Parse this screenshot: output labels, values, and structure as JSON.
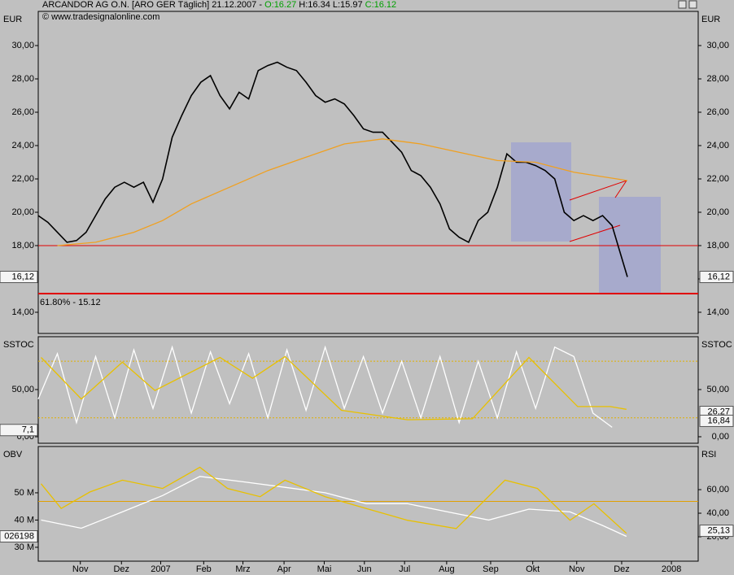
{
  "chart_data": [
    {
      "type": "line",
      "title": "ARCANDOR AG O.N. [ARO GER  Täglich] 21.12.2007 -",
      "ohlc": [
        "O:16.27",
        "H:16.34",
        "L:15.97",
        "C:16.12"
      ],
      "credit": "© www.tradesignalonline.com",
      "left_label": "EUR",
      "right_label": "EUR",
      "xlim": [
        0,
        69
      ],
      "ylim": [
        12.73,
        32.05
      ],
      "yticks": [
        {
          "value": 14,
          "label": "14,00"
        },
        {
          "value": 16,
          "label": "16,00"
        },
        {
          "value": 18,
          "label": "18,00"
        },
        {
          "value": 20,
          "label": "20,00"
        },
        {
          "value": 22,
          "label": "22,00"
        },
        {
          "value": 24,
          "label": "24,00"
        },
        {
          "value": 26,
          "label": "26,00"
        },
        {
          "value": 28,
          "label": "28,00"
        },
        {
          "value": 30,
          "label": "30,00"
        }
      ],
      "hlines": [
        {
          "value": 18,
          "color": "#e00000"
        },
        {
          "value": 15.12,
          "color": "#e00000"
        }
      ],
      "annotation": {
        "text": "61.80% - 15.12",
        "value": 15.12
      },
      "series": [
        {
          "color": "#000000",
          "x": [
            0,
            1,
            2,
            3,
            4,
            5,
            6,
            7,
            8,
            9,
            10,
            11,
            12,
            13,
            14,
            15,
            16,
            17,
            18,
            19,
            20,
            21,
            22,
            23,
            24,
            25,
            26,
            27,
            28,
            29,
            30,
            31,
            32,
            33,
            34,
            35,
            36,
            37,
            38,
            39,
            40,
            41,
            42,
            43,
            44,
            45,
            46,
            47,
            48,
            49,
            50,
            51,
            52,
            53,
            54,
            55,
            56,
            57,
            58,
            59,
            60,
            61.6
          ],
          "values": [
            19.8,
            19.4,
            18.8,
            18.2,
            18.3,
            18.8,
            19.8,
            20.8,
            21.5,
            21.8,
            21.5,
            21.8,
            20.6,
            22.0,
            24.5,
            25.8,
            27.0,
            27.8,
            28.2,
            27.0,
            26.2,
            27.2,
            26.8,
            28.5,
            28.8,
            29.0,
            28.7,
            28.5,
            27.8,
            27.0,
            26.6,
            26.8,
            26.5,
            25.8,
            25.0,
            24.8,
            24.8,
            24.2,
            23.6,
            22.5,
            22.2,
            21.5,
            20.5,
            19.0,
            18.5,
            18.2,
            19.5,
            20.0,
            21.5,
            23.5,
            23.0,
            23.0,
            22.8,
            22.5,
            22.0,
            20.0,
            19.5,
            19.8,
            19.5,
            19.8,
            19.2,
            16.12
          ]
        },
        {
          "color": "#f0a020",
          "x": [
            2,
            6,
            10,
            13,
            16,
            20,
            24,
            28,
            32,
            36,
            40,
            44,
            48,
            52,
            56,
            61.6
          ],
          "values": [
            18.0,
            18.2,
            18.8,
            19.5,
            20.5,
            21.5,
            22.5,
            23.3,
            24.1,
            24.4,
            24.1,
            23.6,
            23.1,
            23.0,
            22.4,
            21.9
          ]
        }
      ],
      "tags": [
        {
          "label": "16,12",
          "value": 16.12,
          "side": "left"
        },
        {
          "label": "16,12",
          "value": 16.12,
          "side": "right"
        }
      ]
    },
    {
      "type": "line",
      "left_label": "SSTOC",
      "right_label": "SSTOC",
      "xlim": [
        0,
        69
      ],
      "ylim": [
        -6.9,
        106
      ],
      "yticks": [
        {
          "value": 0,
          "label": "0,00"
        },
        {
          "value": 50,
          "label": "50,00"
        }
      ],
      "hlines": [
        {
          "value": 80,
          "color": "#e0b000",
          "dotted": true
        },
        {
          "value": 20,
          "color": "#e0b000",
          "dotted": true
        }
      ],
      "series": [
        {
          "color": "#ffffff",
          "x": [
            0,
            2,
            4,
            6,
            8,
            10,
            12,
            14,
            16,
            18,
            20,
            22,
            24,
            26,
            28,
            30,
            32,
            34,
            36,
            38,
            40,
            42,
            44,
            46,
            48,
            50,
            52,
            54,
            56,
            58,
            60
          ],
          "values": [
            40,
            88,
            15,
            85,
            20,
            92,
            30,
            95,
            25,
            90,
            35,
            88,
            20,
            92,
            28,
            95,
            30,
            85,
            25,
            80,
            20,
            85,
            15,
            80,
            20,
            90,
            30,
            95,
            85,
            25,
            10
          ]
        },
        {
          "color": "#e8c000",
          "x": [
            0.3,
            4.5,
            8.8,
            12.2,
            19,
            22.4,
            25.8,
            31.7,
            38.6,
            45.4,
            51.3,
            56.4,
            59.8,
            61.5
          ],
          "values": [
            84,
            40,
            79,
            49,
            84,
            62,
            85,
            28,
            18,
            19,
            84,
            32,
            32,
            29
          ]
        }
      ],
      "tags": [
        {
          "label": "7,1",
          "value": 7.1,
          "side": "left"
        },
        {
          "label": "26,27",
          "value": 26.27,
          "side": "right"
        },
        {
          "label": "16,84",
          "value": 16.84,
          "side": "right"
        }
      ]
    },
    {
      "type": "line",
      "left_label": "OBV",
      "right_label": "RSI",
      "xlim": [
        0,
        69
      ],
      "ylim": [
        24.9,
        67
      ],
      "yticks": [
        {
          "value": 30,
          "label": "30 M"
        },
        {
          "value": 40,
          "label": "40 M"
        },
        {
          "value": 50,
          "label": "50 M"
        }
      ],
      "y2lim": [
        -0.7,
        96.6
      ],
      "y2ticks": [
        {
          "value": 20,
          "label": "20,00"
        },
        {
          "value": 40,
          "label": "40,00"
        },
        {
          "value": 60,
          "label": "60,00"
        }
      ],
      "hlines": [
        {
          "value": 50,
          "color": "#e0a000",
          "axis": "y2"
        }
      ],
      "xticks": [
        {
          "value": 4.4,
          "label": "Nov"
        },
        {
          "value": 8.7,
          "label": "Dez"
        },
        {
          "value": 12.8,
          "label": "2007"
        },
        {
          "value": 17.3,
          "label": "Feb"
        },
        {
          "value": 21.4,
          "label": "Mrz"
        },
        {
          "value": 25.7,
          "label": "Apr"
        },
        {
          "value": 29.9,
          "label": "Mai"
        },
        {
          "value": 34.1,
          "label": "Jun"
        },
        {
          "value": 38.3,
          "label": "Jul"
        },
        {
          "value": 42.7,
          "label": "Aug"
        },
        {
          "value": 47.3,
          "label": "Sep"
        },
        {
          "value": 51.7,
          "label": "Okt"
        },
        {
          "value": 56.3,
          "label": "Nov"
        },
        {
          "value": 61,
          "label": "Dez"
        },
        {
          "value": 66.2,
          "label": "2008"
        }
      ],
      "series": [
        {
          "color": "#ffffff",
          "x": [
            0.3,
            4.5,
            8.8,
            13,
            16.9,
            21.5,
            25.8,
            30,
            34.3,
            38.6,
            42.8,
            47.1,
            51.3,
            55.6,
            59,
            61.5
          ],
          "values": [
            40,
            37,
            43,
            49,
            56,
            54,
            52,
            50,
            46,
            46,
            43,
            40,
            44,
            43,
            38,
            34
          ]
        },
        {
          "color": "#e8c000",
          "axis": "y2",
          "x": [
            0.3,
            2.4,
            5.4,
            8.8,
            13,
            16.9,
            19.8,
            23.2,
            25.8,
            30,
            34.3,
            38.6,
            43.7,
            48.8,
            52.2,
            55.6,
            58.1,
            61.5
          ],
          "values": [
            65,
            44,
            58,
            68,
            61,
            79,
            61,
            54,
            68,
            54,
            44,
            34,
            27,
            68,
            61,
            34,
            48,
            23
          ]
        }
      ],
      "tags": [
        {
          "label": "026198",
          "series": 0,
          "side": "left"
        },
        {
          "label": "25,13",
          "value": 25.13,
          "axis": "y2",
          "side": "right"
        }
      ]
    }
  ]
}
